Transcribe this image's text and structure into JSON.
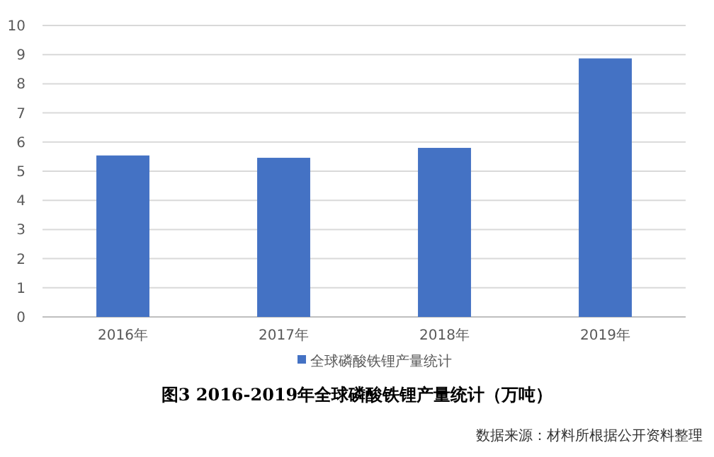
{
  "chart_data": {
    "type": "bar",
    "title": "图3 2016-2019年全球磷酸铁锂产量统计（万吨）",
    "categories": [
      "2016年",
      "2017年",
      "2018年",
      "2019年"
    ],
    "series": [
      {
        "name": "全球磷酸铁锂产量统计",
        "color": "#4472c4",
        "values": [
          5.54,
          5.46,
          5.8,
          8.87
        ]
      }
    ],
    "ylim": [
      0,
      10
    ],
    "yticks": [
      0,
      1,
      2,
      3,
      4,
      5,
      6,
      7,
      8,
      9,
      10
    ],
    "grid": "y",
    "legend": "bottom",
    "annotations": [
      "数据来源：材料所根据公开资料整理"
    ]
  }
}
